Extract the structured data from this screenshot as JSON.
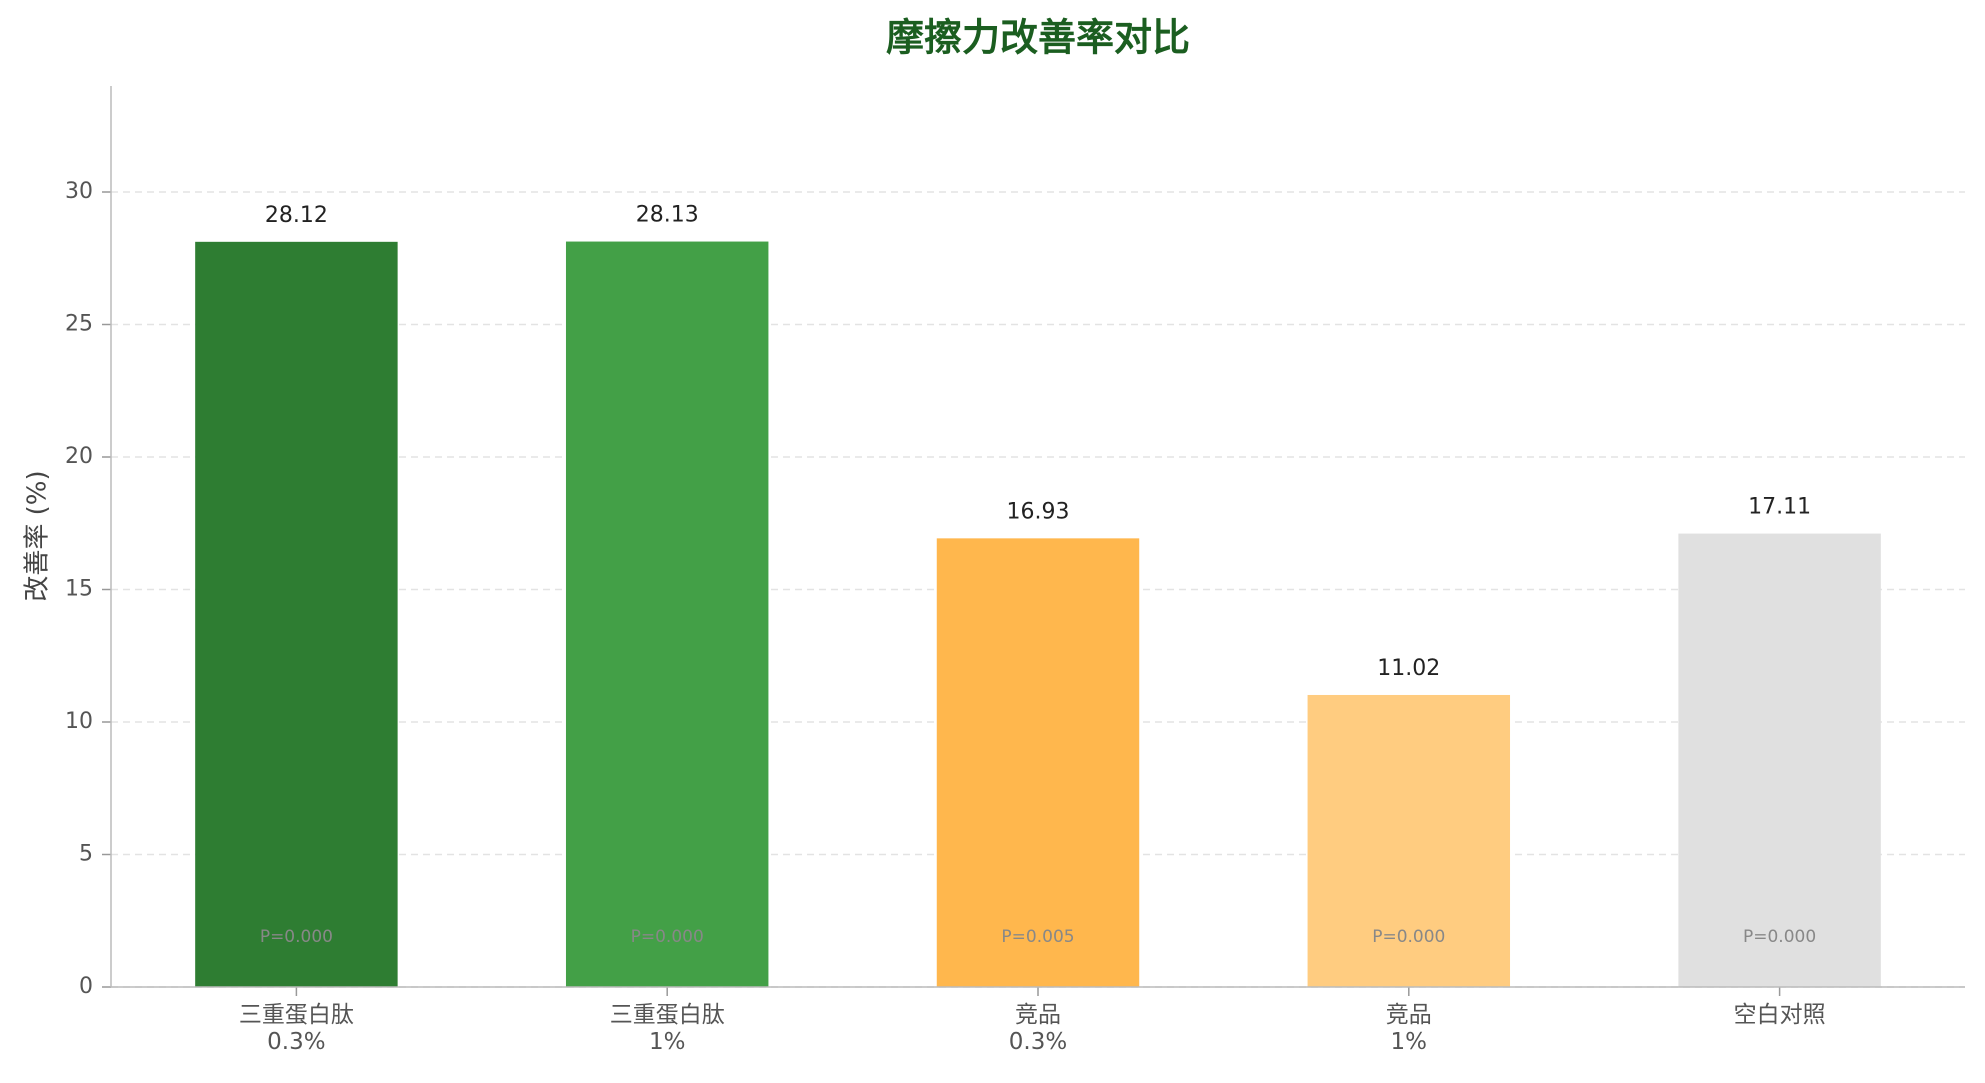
{
  "chart_data": {
    "type": "bar",
    "title": "摩擦力改善率对比",
    "y_label": "改善率 (%)",
    "categories": [
      "三重蛋白肽\n0.3%",
      "三重蛋白肽\n1%",
      "竞品\n0.3%",
      "竞品\n1%",
      "空白对照"
    ],
    "values": [
      28.12,
      28.13,
      16.93,
      11.02,
      17.11
    ],
    "colors": [
      "#2e7d32",
      "#43a047",
      "#ffb74d",
      "#ffcc80",
      "#e0e0e0"
    ],
    "annotations": [
      "P=0.000",
      "P=0.000",
      "P=0.005",
      "P=0.000",
      "P=0.000"
    ],
    "ylim": [
      0,
      34
    ],
    "yticks": [
      0,
      5,
      10,
      15,
      20,
      25,
      30
    ],
    "grid": true
  }
}
